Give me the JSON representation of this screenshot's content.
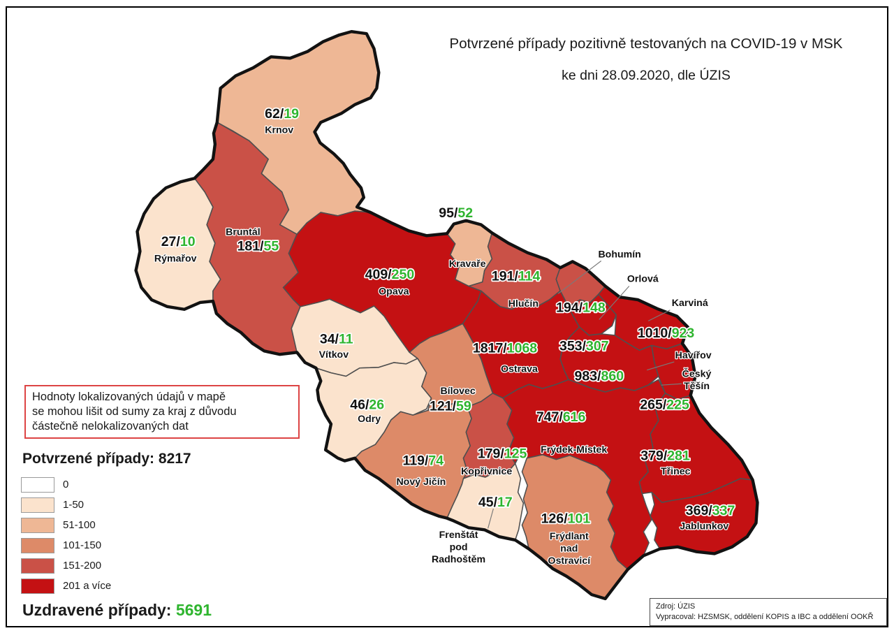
{
  "title": {
    "line1": "Potvrzené případy pozitivně testovaných na COVID-19 v MSK",
    "line2": "ke dni 28.09.2020, dle ÚZIS"
  },
  "note": {
    "lines": [
      "Hodnoty lokalizovaných údajů v mapě",
      "se mohou lišit od sumy za kraj z důvodu",
      "částečně nelokalizovaných dat"
    ]
  },
  "totals": {
    "confirmed_label": "Potvrzené případy:",
    "confirmed_value": "8217",
    "recovered_label": "Uzdravené případy:",
    "recovered_value": "5691"
  },
  "legend": {
    "items": [
      {
        "label": "0",
        "bucket": "0"
      },
      {
        "label": "1-50",
        "bucket": "1-50"
      },
      {
        "label": "51-100",
        "bucket": "51-100"
      },
      {
        "label": "101-150",
        "bucket": "101-150"
      },
      {
        "label": "151-200",
        "bucket": "151-200"
      },
      {
        "label": "201 a více",
        "bucket": "201+"
      }
    ]
  },
  "source": {
    "line1": "Zdroj: ÚZIS",
    "line2": "Vypracoval: HZSMSK, oddělení KOPIS a IBC a oddělení OOKŘ"
  },
  "colors": {
    "recovered_text": "#2fb52f",
    "confirmed_text": "#111111",
    "palette": {
      "0": "#ffffff",
      "1-50": "#fbe3cd",
      "51-100": "#eeb795",
      "101-150": "#dd8a68",
      "151-200": "#ca5147",
      "201+": "#c41113"
    }
  },
  "map": {
    "districts": [
      {
        "id": "rymarov",
        "name": "Rýmařov",
        "confirmed": "27",
        "recovered": "10",
        "bucket": "1-50"
      },
      {
        "id": "krnov",
        "name": "Krnov",
        "confirmed": "62",
        "recovered": "19",
        "bucket": "51-100"
      },
      {
        "id": "bruntal",
        "name": "Bruntál",
        "confirmed": "181",
        "recovered": "55",
        "bucket": "151-200"
      },
      {
        "id": "vitkov",
        "name": "Vítkov",
        "confirmed": "34",
        "recovered": "11",
        "bucket": "1-50"
      },
      {
        "id": "odry",
        "name": "Odry",
        "confirmed": "46",
        "recovered": "26",
        "bucket": "1-50"
      },
      {
        "id": "opava",
        "name": "Opava",
        "confirmed": "409",
        "recovered": "250",
        "bucket": "201+"
      },
      {
        "id": "kravare",
        "name": "Kravaře",
        "confirmed": "95",
        "recovered": "52",
        "bucket": "51-100"
      },
      {
        "id": "hlucin",
        "name": "Hlučín",
        "confirmed": "191",
        "recovered": "114",
        "bucket": "151-200"
      },
      {
        "id": "bohumin",
        "name": "Bohumín",
        "confirmed": "194",
        "recovered": "148",
        "bucket": "151-200"
      },
      {
        "id": "orlova",
        "name": "Orlová",
        "confirmed": "353",
        "recovered": "307",
        "bucket": "201+"
      },
      {
        "id": "karvina",
        "name": "Karviná",
        "confirmed": "1010",
        "recovered": "923",
        "bucket": "201+"
      },
      {
        "id": "havirov",
        "name": "Havířov",
        "confirmed": "983",
        "recovered": "860",
        "bucket": "201+"
      },
      {
        "id": "cesky_tesin",
        "name": "Český Těšín",
        "confirmed": "265",
        "recovered": "225",
        "bucket": "201+"
      },
      {
        "id": "ostrava",
        "name": "Ostrava",
        "confirmed": "1817",
        "recovered": "1068",
        "bucket": "201+"
      },
      {
        "id": "bilovec",
        "name": "Bílovec",
        "confirmed": "121",
        "recovered": "59",
        "bucket": "101-150"
      },
      {
        "id": "novy_jicin",
        "name": "Nový Jičín",
        "confirmed": "119",
        "recovered": "74",
        "bucket": "101-150"
      },
      {
        "id": "koprivnice",
        "name": "Kopřivnice",
        "confirmed": "179",
        "recovered": "125",
        "bucket": "151-200"
      },
      {
        "id": "frenstat",
        "name": "Frenštát pod Radhoštěm",
        "confirmed": "45",
        "recovered": "17",
        "bucket": "1-50"
      },
      {
        "id": "frydek",
        "name": "Frýdek-Místek",
        "confirmed": "747",
        "recovered": "616",
        "bucket": "201+"
      },
      {
        "id": "frydlant",
        "name": "Frýdlant nad Ostravicí",
        "confirmed": "126",
        "recovered": "101",
        "bucket": "101-150"
      },
      {
        "id": "trinec",
        "name": "Třinec",
        "confirmed": "379",
        "recovered": "281",
        "bucket": "201+"
      },
      {
        "id": "jablunkov",
        "name": "Jablunkov",
        "confirmed": "369",
        "recovered": "337",
        "bucket": "201+"
      }
    ]
  }
}
